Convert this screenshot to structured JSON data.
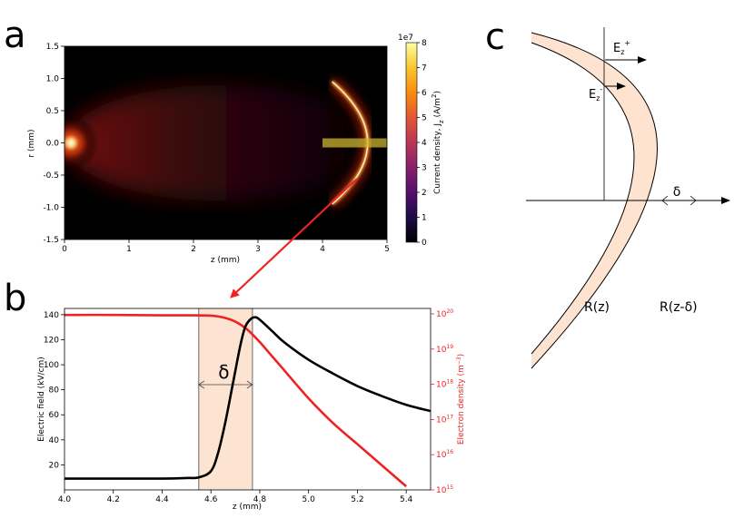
{
  "panels": {
    "a": "a",
    "b": "b",
    "c": "c"
  },
  "colors": {
    "red_curve": "#ee2222",
    "black_curve": "#000000",
    "shell_fill": "#fde3d0",
    "band_fill": "#fcdcc5",
    "arrow": "#ee2222",
    "hot": "#fffbe8",
    "dark": "#000000"
  },
  "chart_data": [
    {
      "type": "heatmap",
      "panel": "a",
      "xlabel": "z (mm)",
      "ylabel": "r (mm)",
      "xlim": [
        0,
        5
      ],
      "ylim": [
        -1.5,
        1.5
      ],
      "x_ticks": [
        "0",
        "1",
        "2",
        "3",
        "4",
        "5"
      ],
      "y_ticks": [
        "1.5",
        "1.0",
        "0.5",
        "0.0",
        "-0.5",
        "-1.0",
        "-1.5"
      ],
      "colorbar": {
        "label": "Current density, J",
        "label_sub": "z",
        "label_unit": " (A/m",
        "label_unit_sup": "2",
        "label_close": ")",
        "multiplier": "1e7",
        "ticks": [
          "8",
          "7",
          "6",
          "5",
          "4",
          "3",
          "2",
          "1",
          "0"
        ],
        "range": [
          0,
          8
        ]
      },
      "features": {
        "source_z": 0.1,
        "front_z": 4.7,
        "front_half_height_r": 0.95,
        "marker_band_z": [
          4.0,
          4.75
        ],
        "marker_band_r": 0.0
      }
    },
    {
      "type": "line",
      "panel": "b",
      "xlabel": "z (mm)",
      "ylabel": "Electric field (kV/cm)",
      "y2label": "Electron density (m",
      "y2label_sup": "−3",
      "y2label_close": ")",
      "xlim": [
        4.0,
        5.5
      ],
      "ylim": [
        0,
        145
      ],
      "y2lim_log10": [
        15,
        20
      ],
      "x_ticks": [
        "4.0",
        "4.2",
        "4.4",
        "4.6",
        "4.8",
        "5.0",
        "5.2",
        "5.4"
      ],
      "y_ticks": [
        "140",
        "120",
        "100",
        "80",
        "60",
        "40",
        "20"
      ],
      "y2_ticks": [
        {
          "base": "10",
          "exp": "20",
          "log": 20
        },
        {
          "base": "10",
          "exp": "19",
          "log": 19
        },
        {
          "base": "10",
          "exp": "18",
          "log": 18
        },
        {
          "base": "10",
          "exp": "17",
          "log": 17
        },
        {
          "base": "10",
          "exp": "16",
          "log": 16
        },
        {
          "base": "10",
          "exp": "15",
          "log": 15
        }
      ],
      "delta_label": "δ",
      "delta_band_z": [
        4.55,
        4.77
      ],
      "series": [
        {
          "axis": "left",
          "color": "#000000",
          "x": [
            4.0,
            4.2,
            4.4,
            4.5,
            4.55,
            4.6,
            4.63,
            4.66,
            4.69,
            4.72,
            4.74,
            4.76,
            4.78,
            4.8,
            4.85,
            4.9,
            5.0,
            5.1,
            5.2,
            5.3,
            5.4,
            5.5
          ],
          "y": [
            9,
            9,
            9,
            9.5,
            10,
            15,
            30,
            55,
            85,
            115,
            130,
            136,
            138,
            136,
            127,
            118,
            104,
            93,
            83,
            75,
            68,
            63
          ]
        },
        {
          "axis": "right",
          "color": "#ee2222",
          "x": [
            4.0,
            4.2,
            4.4,
            4.5,
            4.6,
            4.65,
            4.7,
            4.75,
            4.8,
            4.85,
            4.9,
            5.0,
            5.1,
            5.2,
            5.3,
            5.4
          ],
          "log10y": [
            19.97,
            19.97,
            19.96,
            19.96,
            19.95,
            19.9,
            19.78,
            19.55,
            19.2,
            18.8,
            18.4,
            17.6,
            16.9,
            16.3,
            15.7,
            15.1
          ]
        }
      ]
    }
  ],
  "diagram_c": {
    "ez_plus": "E",
    "ez_plus_sub": "z",
    "ez_plus_sup": "+",
    "ez_minus": "E",
    "ez_minus_sub": "z",
    "ez_minus_sup": "-",
    "delta": "δ",
    "r_inner": "R(z)",
    "r_outer": "R(z-δ)"
  }
}
